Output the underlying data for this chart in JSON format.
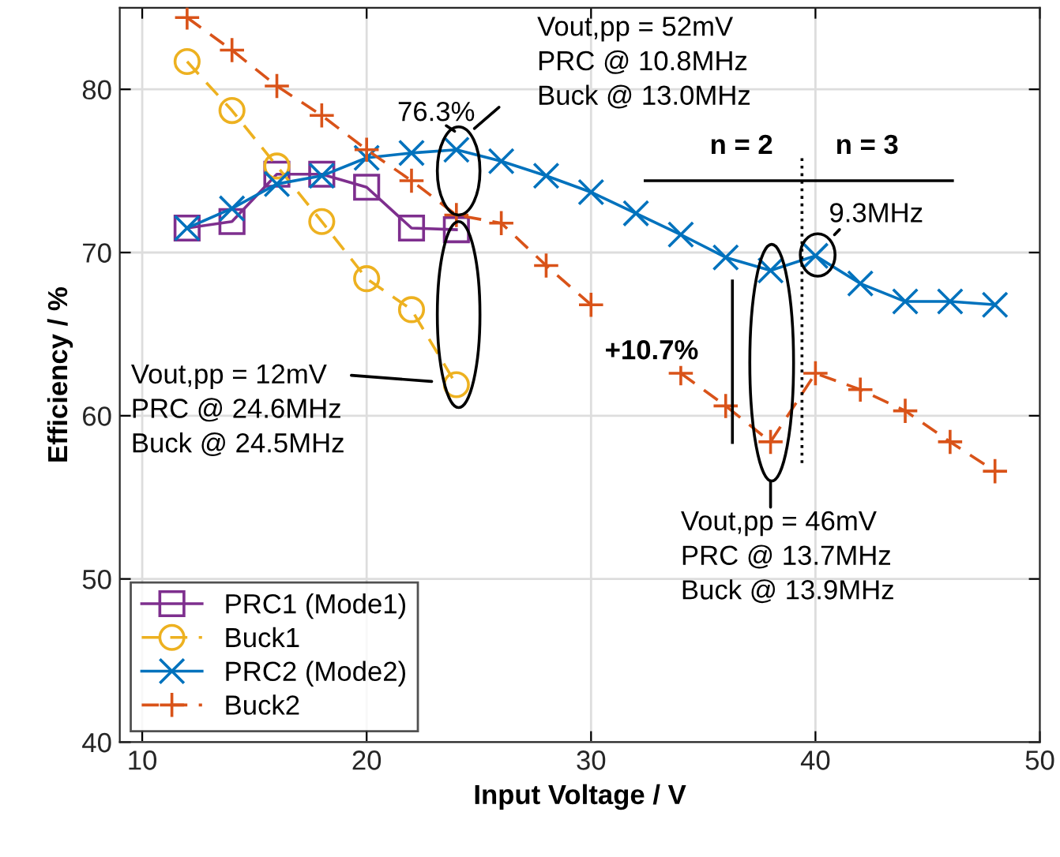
{
  "chart_data": {
    "type": "line",
    "xlabel": "Input Voltage / V",
    "ylabel": "Efficiency / %",
    "xlim": [
      9,
      50
    ],
    "xticks": [
      10,
      20,
      30,
      40,
      50
    ],
    "ylim": [
      40,
      85
    ],
    "yticks": [
      40,
      50,
      60,
      70,
      80
    ],
    "grid": true,
    "legend": "bottom left",
    "series": [
      {
        "name": "PRC1 (Mode1)",
        "color": "#7e2f8e",
        "marker": "square",
        "line_style": "solid",
        "x": [
          12,
          14,
          16,
          18,
          20,
          22,
          24
        ],
        "values": [
          71.5,
          71.9,
          74.8,
          74.8,
          74.0,
          71.5,
          71.4
        ]
      },
      {
        "name": "Buck1",
        "color": "#edb120",
        "marker": "circle",
        "line_style": "dashed",
        "x": [
          12,
          14,
          16,
          18,
          20,
          22,
          24
        ],
        "values": [
          81.7,
          78.7,
          75.3,
          71.9,
          68.4,
          66.5,
          61.9
        ]
      },
      {
        "name": "PRC2 (Mode2)",
        "color": "#0072bd",
        "marker": "x",
        "line_style": "solid",
        "x": [
          12,
          14,
          16,
          18,
          20,
          22,
          24,
          26,
          28,
          30,
          32,
          34,
          36,
          38,
          40,
          42,
          44,
          46,
          48
        ],
        "values": [
          71.5,
          72.7,
          74.2,
          74.7,
          75.8,
          76.1,
          76.3,
          75.6,
          74.7,
          73.7,
          72.4,
          71.1,
          69.7,
          68.9,
          69.8,
          68.1,
          67.0,
          67.0,
          66.8
        ]
      },
      {
        "name": "Buck2",
        "color": "#d95319",
        "marker": "plus",
        "line_style": "dashed",
        "x": [
          12,
          14,
          16,
          18,
          20,
          22,
          24,
          26,
          28,
          30,
          32,
          34,
          36,
          38,
          40,
          42,
          44,
          46,
          48
        ],
        "values": [
          84.4,
          82.4,
          80.2,
          78.4,
          76.3,
          74.4,
          72.3,
          71.8,
          69.2,
          66.8,
          null,
          62.6,
          60.6,
          58.4,
          62.6,
          61.6,
          60.3,
          58.4,
          56.6
        ]
      }
    ],
    "ref_lines": [
      {
        "axis": "x",
        "value": 39.4,
        "line_style": "dotted",
        "color": "#000000"
      },
      {
        "axis": "y",
        "value": 74.4,
        "line_style": "solid",
        "color": "#000000"
      },
      {
        "axis": "x",
        "value": 36.3,
        "line_style": "solid",
        "color": "#000000"
      }
    ],
    "annotations": [
      {
        "text": "76.3%",
        "x": 24,
        "y": 76.3
      },
      "Vout,pp = 52mV\nPRC @ 10.8MHz\nBuck @ 13.0MHz",
      "Vout,pp = 12mV\nPRC @ 24.6MHz\nBuck @ 24.5MHz",
      "Vout,pp = 46mV\nPRC @ 13.7MHz\nBuck @ 13.9MHz",
      {
        "text": "9.3MHz",
        "x": 40,
        "y": 69.8
      },
      "+10.7%",
      "n = 2",
      "n = 3"
    ]
  }
}
